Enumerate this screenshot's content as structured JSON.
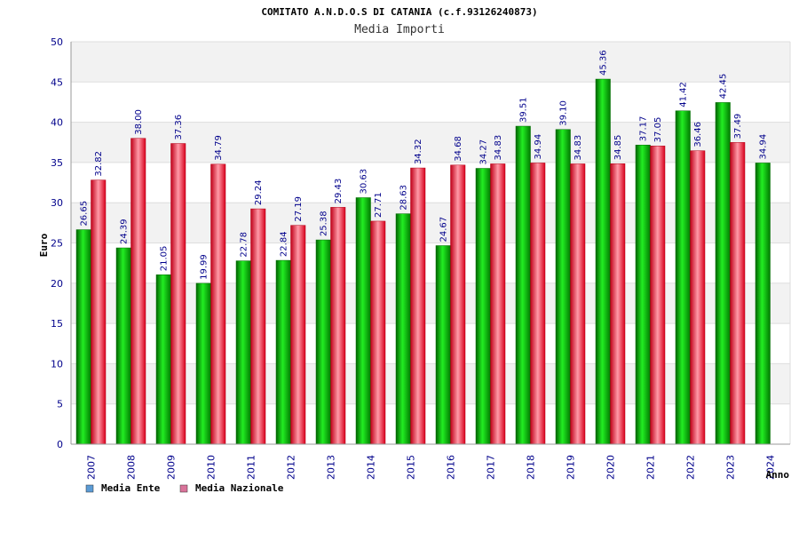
{
  "chart_data": {
    "type": "bar",
    "title": "COMITATO A.N.D.O.S DI CATANIA (c.f.93126240873)",
    "subtitle": "Media Importi",
    "xlabel": "Anno",
    "ylabel": "Euro",
    "ylim": [
      0,
      50
    ],
    "yticks": [
      "0",
      "5",
      "10",
      "15",
      "20",
      "25",
      "30",
      "35",
      "40",
      "45",
      "50"
    ],
    "grid": true,
    "legend_position": "bottom-left",
    "categories": [
      "2007",
      "2008",
      "2009",
      "2010",
      "2011",
      "2012",
      "2013",
      "2014",
      "2015",
      "2016",
      "2017",
      "2018",
      "2019",
      "2020",
      "2021",
      "2022",
      "2023",
      "2024"
    ],
    "series": [
      {
        "name": "Media Ente",
        "legend_color": "#5b9bd5",
        "bar_color": "#00a000",
        "values": [
          26.65,
          24.39,
          21.05,
          19.99,
          22.78,
          22.84,
          25.38,
          30.63,
          28.63,
          24.67,
          34.27,
          39.51,
          39.1,
          45.36,
          37.17,
          41.42,
          42.45,
          34.94
        ],
        "labels": [
          "26.65",
          "24.39",
          "21.05",
          "19.99",
          "22.78",
          "22.84",
          "25.38",
          "30.63",
          "28.63",
          "24.67",
          "34.27",
          "39.51",
          "39.10",
          "45.36",
          "37.17",
          "41.42",
          "42.45",
          "34.94"
        ]
      },
      {
        "name": "Media Nazionale",
        "legend_color": "#d9739a",
        "bar_color": "#e8001c",
        "values": [
          32.82,
          38.0,
          37.36,
          34.79,
          29.24,
          27.19,
          29.43,
          27.71,
          34.32,
          34.68,
          34.83,
          34.94,
          34.83,
          34.85,
          37.05,
          36.46,
          37.49,
          null
        ],
        "labels": [
          "32.82",
          "38.00",
          "37.36",
          "34.79",
          "29.24",
          "27.19",
          "29.43",
          "27.71",
          "34.32",
          "34.68",
          "34.83",
          "34.94",
          "34.83",
          "34.85",
          "37.05",
          "36.46",
          "37.49",
          null
        ]
      }
    ]
  }
}
